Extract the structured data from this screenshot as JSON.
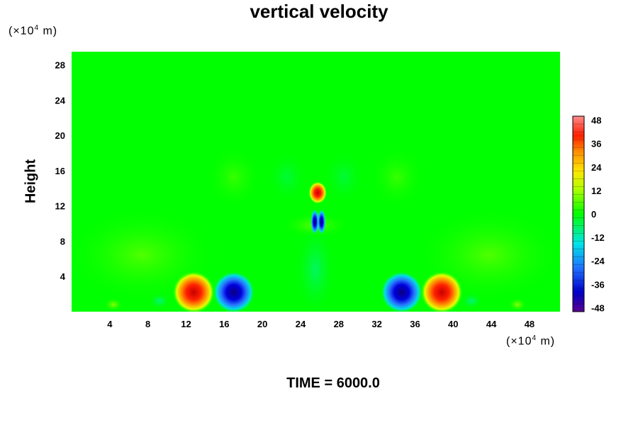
{
  "chart_data": {
    "type": "heatmap",
    "title": "vertical velocity",
    "xlabel_units": "(×10",
    "xlabel_units_exp": "4",
    "xlabel_units_tail": " m)",
    "ylabel": "Height",
    "ylabel_units": "(×10",
    "ylabel_units_exp": "4",
    "ylabel_units_tail": " m)",
    "x_ticks": [
      4,
      8,
      12,
      16,
      20,
      24,
      28,
      32,
      36,
      40,
      44,
      48
    ],
    "y_ticks": [
      4,
      8,
      12,
      16,
      20,
      24,
      28
    ],
    "xlim": [
      0,
      51.2
    ],
    "ylim": [
      0,
      29.5
    ],
    "colorbar": {
      "ticks": [
        48,
        36,
        24,
        12,
        0,
        -12,
        -24,
        -36,
        -48
      ],
      "range": [
        -50,
        50
      ]
    },
    "features": [
      {
        "name": "updraft-left",
        "x": 12.8,
        "y": 2.2,
        "value": 45
      },
      {
        "name": "downdraft-left",
        "x": 17.0,
        "y": 2.2,
        "value": -40
      },
      {
        "name": "updraft-center-top",
        "x": 25.8,
        "y": 13.5,
        "value": 38
      },
      {
        "name": "downdraft-center-a",
        "x": 25.5,
        "y": 10.2,
        "value": -30
      },
      {
        "name": "downdraft-center-b",
        "x": 26.2,
        "y": 10.2,
        "value": -30
      },
      {
        "name": "downdraft-right",
        "x": 34.6,
        "y": 2.2,
        "value": -40
      },
      {
        "name": "updraft-right",
        "x": 38.8,
        "y": 2.2,
        "value": 45
      }
    ],
    "footer": "TIME = 6000.0"
  }
}
